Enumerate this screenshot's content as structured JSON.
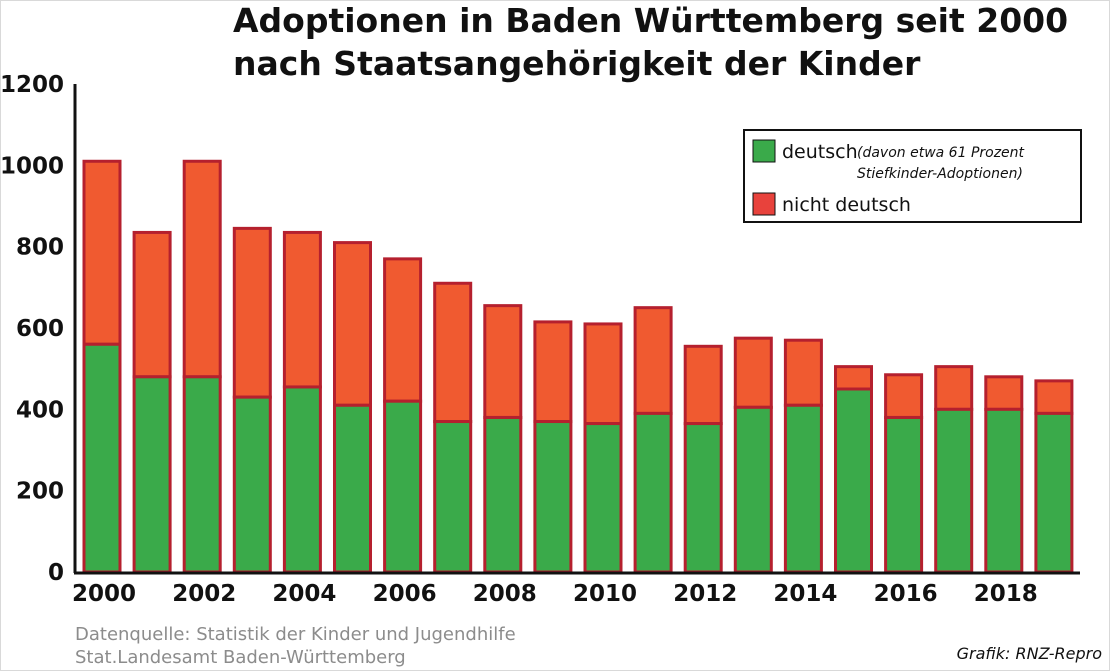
{
  "chart_data": {
    "type": "bar",
    "stacked": true,
    "title": "Adoptionen in Baden Württemberg seit 2000",
    "subtitle": "nach Staatsangehörigkeit der Kinder",
    "categories": [
      2000,
      2001,
      2002,
      2003,
      2004,
      2005,
      2006,
      2007,
      2008,
      2009,
      2010,
      2011,
      2012,
      2013,
      2014,
      2015,
      2016,
      2017,
      2018,
      2019
    ],
    "x_tick_labels": [
      "2000",
      "2002",
      "2004",
      "2006",
      "2008",
      "2010",
      "2012",
      "2014",
      "2016",
      "2018"
    ],
    "series": [
      {
        "name": "deutsch",
        "color": "#3aaa4a",
        "values": [
          560,
          480,
          480,
          430,
          455,
          410,
          420,
          370,
          380,
          370,
          365,
          390,
          365,
          405,
          410,
          450,
          380,
          400,
          400,
          390
        ]
      },
      {
        "name": "nicht deutsch",
        "color": "#f05a30",
        "values": [
          450,
          355,
          530,
          415,
          380,
          400,
          350,
          340,
          275,
          245,
          245,
          260,
          190,
          170,
          160,
          55,
          105,
          105,
          80,
          80
        ]
      }
    ],
    "ylim": [
      0,
      1200
    ],
    "yticks": [
      0,
      200,
      400,
      600,
      800,
      1000,
      1200
    ],
    "grid": false,
    "legend": {
      "placement": "top-right",
      "note_line1": "(davon etwa 61 Prozent",
      "note_line2": "Stiefkinder-Adoptionen)"
    }
  },
  "footer": {
    "source_line1": "Datenquelle: Statistik der Kinder und Jugendhilfe",
    "source_line2": "Stat.Landesamt Baden-Württemberg",
    "credit": "Grafik: RNZ-Repro"
  },
  "colors": {
    "bar_outline": "#b5202e",
    "green": "#3aaa4a",
    "red": "#f05a30"
  }
}
